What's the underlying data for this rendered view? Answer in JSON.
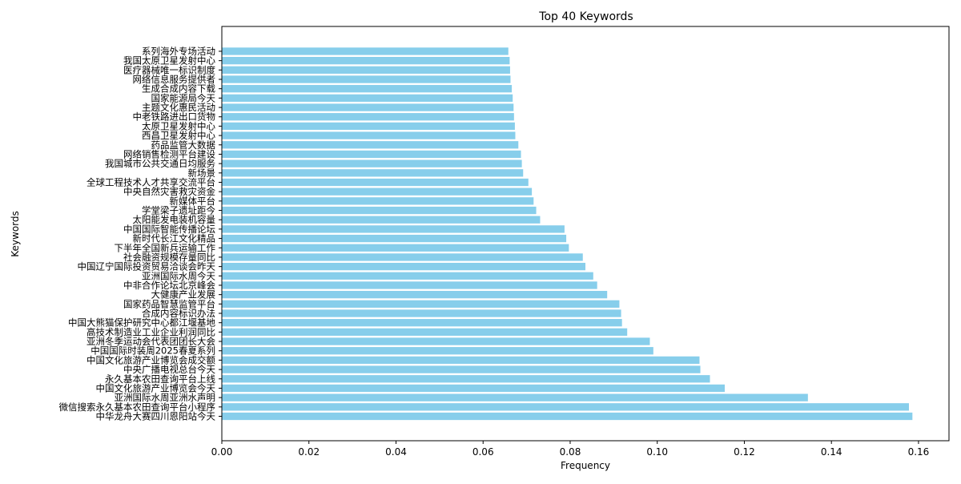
{
  "chart_data": {
    "type": "bar",
    "orientation": "horizontal",
    "title": "Top 40 Keywords",
    "xlabel": "Frequency",
    "ylabel": "Keywords",
    "xlim": [
      0,
      0.167
    ],
    "xticks": [
      "0.00",
      "0.02",
      "0.04",
      "0.06",
      "0.08",
      "0.10",
      "0.12",
      "0.14",
      "0.16"
    ],
    "xtick_values": [
      0,
      0.02,
      0.04,
      0.06,
      0.08,
      0.1,
      0.12,
      0.14,
      0.16
    ],
    "grid": false,
    "bar_color": "#87ceeb",
    "categories": [
      "中华龙舟大赛四川恩阳站今天",
      "微信搜索永久基本农田查询平台小程序",
      "亚洲国际水周亚洲水声明",
      "中国文化旅游产业博览会今天",
      "永久基本农田查询平台上线",
      "中央广播电视总台今天",
      "中国文化旅游产业博览会成交额",
      "中国国际时装周2025春夏系列",
      "亚洲冬季运动会代表团团长大会",
      "高技术制造业工业企业利润同比",
      "中国大熊猫保护研究中心都江堰基地",
      "合成内容标识办法",
      "国家药品智慧监管平台",
      "大健康产业发展",
      "中非合作论坛北京峰会",
      "亚洲国际水周今天",
      "中国辽宁国际投资贸易洽谈会昨天",
      "社会融资规模存量同比",
      "下半年全国新兵运输工作",
      "新时代长江文化精品",
      "中国国际智能传播论坛",
      "太阳能发电装机容量",
      "学堂梁子遗址距今",
      "新媒体平台",
      "中央自然灾害救灾资金",
      "全球工程技术人才共享交流平台",
      "新场景",
      "我国城市公共交通日均服务",
      "网络销售检测平台建设",
      "药品监管大数据",
      "西昌卫星发射中心",
      "太原卫星发射中心",
      "中老铁路进出口货物",
      "主题文化惠民活动",
      "国家能源局今天",
      "生成合成内容下载",
      "网络信息服务提供者",
      "医疗器械唯一标识制度",
      "我国太原卫星发射中心",
      "系列海外专场活动"
    ],
    "values": [
      0.1586,
      0.1578,
      0.1346,
      0.1155,
      0.1121,
      0.1099,
      0.1097,
      0.0991,
      0.0983,
      0.0931,
      0.0919,
      0.0917,
      0.0913,
      0.0885,
      0.0862,
      0.0853,
      0.0835,
      0.0829,
      0.0797,
      0.0791,
      0.0787,
      0.0731,
      0.0722,
      0.0716,
      0.0712,
      0.0704,
      0.0692,
      0.0689,
      0.0687,
      0.0681,
      0.0674,
      0.0673,
      0.0671,
      0.067,
      0.0668,
      0.0666,
      0.0663,
      0.0662,
      0.0661,
      0.0658
    ]
  }
}
